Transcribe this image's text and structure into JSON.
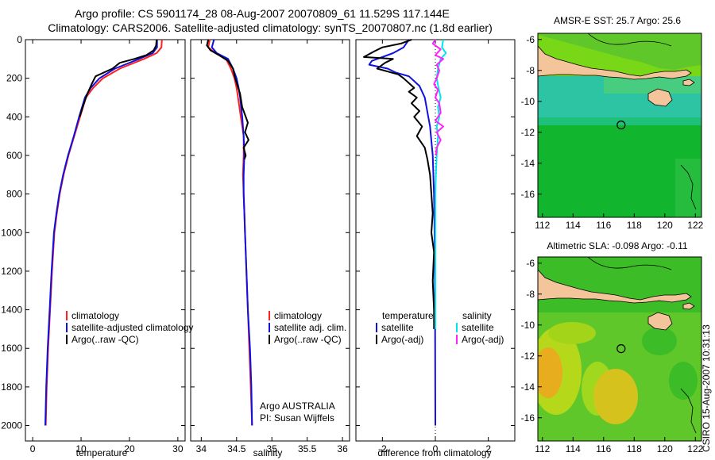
{
  "header": {
    "line1": "Argo profile: CS 5901174_28 08-Aug-2007 20070809_61 11.529S 117.144E",
    "line2": "Climatology: CARS2006. Satellite-adjusted climatology: synTS_20070807.nc (1.8d earlier)"
  },
  "colors": {
    "climatology": "#ff2020",
    "satellite": "#1010e0",
    "argo": "#000000",
    "salinity_satellite": "#00e5ee",
    "salinity_argo": "#ff22ff"
  },
  "chart_data": [
    {
      "type": "line",
      "id": "temperature",
      "xlabel": "temperature",
      "ylabel": "",
      "xlim": [
        -1.5,
        31.5
      ],
      "ylim": [
        0,
        2080
      ],
      "xticks": [
        0,
        10,
        20,
        30
      ],
      "yticks": [
        0,
        200,
        400,
        600,
        800,
        1000,
        1200,
        1400,
        1600,
        1800,
        2000
      ],
      "legend_position": "bottom-center",
      "legend": [
        "climatology",
        "satellite-adjusted climatology",
        "Argo(..raw -QC)"
      ],
      "series": [
        {
          "name": "climatology",
          "color": "#ff2020",
          "points": [
            [
              26.7,
              0
            ],
            [
              26.6,
              40
            ],
            [
              25.6,
              70
            ],
            [
              23.0,
              100
            ],
            [
              18.0,
              150
            ],
            [
              14.5,
              200
            ],
            [
              12.5,
              250
            ],
            [
              11.0,
              300
            ],
            [
              9.8,
              400
            ],
            [
              8.6,
              500
            ],
            [
              7.4,
              600
            ],
            [
              6.4,
              700
            ],
            [
              5.6,
              800
            ],
            [
              5.0,
              900
            ],
            [
              4.5,
              1000
            ],
            [
              4.0,
              1200
            ],
            [
              3.6,
              1400
            ],
            [
              3.2,
              1600
            ],
            [
              2.9,
              1800
            ],
            [
              2.7,
              2000
            ]
          ]
        },
        {
          "name": "satellite-adjusted climatology",
          "color": "#1010e0",
          "points": [
            [
              25.7,
              0
            ],
            [
              25.7,
              40
            ],
            [
              24.8,
              70
            ],
            [
              22.0,
              100
            ],
            [
              17.0,
              150
            ],
            [
              13.8,
              200
            ],
            [
              12.0,
              250
            ],
            [
              10.8,
              300
            ],
            [
              9.6,
              400
            ],
            [
              8.5,
              500
            ],
            [
              7.3,
              600
            ],
            [
              6.3,
              700
            ],
            [
              5.5,
              800
            ],
            [
              4.9,
              900
            ],
            [
              4.4,
              1000
            ],
            [
              3.9,
              1200
            ],
            [
              3.5,
              1400
            ],
            [
              3.1,
              1600
            ],
            [
              2.8,
              1800
            ],
            [
              2.6,
              2000
            ]
          ]
        },
        {
          "name": "Argo(..raw -QC)",
          "color": "#000000",
          "points": [
            [
              25.6,
              0
            ],
            [
              25.5,
              30
            ],
            [
              25.0,
              55
            ],
            [
              23.5,
              80
            ],
            [
              21.0,
              100
            ],
            [
              18.0,
              120
            ],
            [
              16.5,
              150
            ],
            [
              13.0,
              190
            ],
            [
              12.2,
              230
            ],
            [
              11.3,
              280
            ],
            [
              10.6,
              330
            ],
            [
              9.7,
              400
            ]
          ]
        }
      ]
    },
    {
      "type": "line",
      "id": "salinity",
      "xlabel": "salinity",
      "ylabel": "",
      "xlim": [
        33.85,
        36.1
      ],
      "ylim": [
        0,
        2080
      ],
      "xticks": [
        34,
        34.5,
        35,
        35.5,
        36
      ],
      "yticks": [
        0,
        200,
        400,
        600,
        800,
        1000,
        1200,
        1400,
        1600,
        1800,
        2000
      ],
      "legend_position": "bottom-center",
      "legend": [
        "climatology",
        "satellite adj. clim.",
        "Argo(..raw -QC)"
      ],
      "annotations": [
        "Argo AUSTRALIA",
        "PI: Susan Wijffels"
      ],
      "series": [
        {
          "name": "climatology",
          "color": "#ff2020",
          "points": [
            [
              34.12,
              0
            ],
            [
              34.1,
              40
            ],
            [
              34.2,
              70
            ],
            [
              34.35,
              100
            ],
            [
              34.42,
              150
            ],
            [
              34.47,
              200
            ],
            [
              34.5,
              250
            ],
            [
              34.52,
              300
            ],
            [
              34.56,
              400
            ],
            [
              34.6,
              500
            ],
            [
              34.6,
              600
            ],
            [
              34.59,
              700
            ],
            [
              34.6,
              800
            ],
            [
              34.61,
              900
            ],
            [
              34.62,
              1000
            ],
            [
              34.64,
              1200
            ],
            [
              34.66,
              1400
            ],
            [
              34.68,
              1600
            ],
            [
              34.7,
              1800
            ],
            [
              34.72,
              2000
            ]
          ]
        },
        {
          "name": "satellite adj. clim.",
          "color": "#1010e0",
          "points": [
            [
              34.18,
              0
            ],
            [
              34.15,
              40
            ],
            [
              34.22,
              70
            ],
            [
              34.38,
              100
            ],
            [
              34.45,
              150
            ],
            [
              34.5,
              200
            ],
            [
              34.53,
              250
            ],
            [
              34.55,
              300
            ],
            [
              34.58,
              400
            ],
            [
              34.6,
              500
            ],
            [
              34.61,
              600
            ],
            [
              34.6,
              700
            ],
            [
              34.6,
              800
            ],
            [
              34.61,
              900
            ],
            [
              34.62,
              1000
            ],
            [
              34.64,
              1200
            ],
            [
              34.66,
              1400
            ],
            [
              34.69,
              1600
            ],
            [
              34.71,
              1800
            ],
            [
              34.72,
              2000
            ]
          ]
        },
        {
          "name": "Argo(..raw -QC)",
          "color": "#000000",
          "points": [
            [
              34.1,
              0
            ],
            [
              34.08,
              30
            ],
            [
              34.13,
              55
            ],
            [
              34.25,
              80
            ],
            [
              34.38,
              110
            ],
            [
              34.45,
              150
            ],
            [
              34.48,
              200
            ],
            [
              34.55,
              280
            ],
            [
              34.58,
              350
            ],
            [
              34.66,
              430
            ],
            [
              34.62,
              480
            ],
            [
              34.67,
              520
            ],
            [
              34.6,
              560
            ],
            [
              34.63,
              600
            ],
            [
              34.61,
              620
            ]
          ]
        }
      ]
    },
    {
      "type": "line",
      "id": "difference",
      "xlabel": "difference from climatology",
      "ylabel": "",
      "xlim": [
        -3.0,
        3.0
      ],
      "ylim": [
        0,
        2080
      ],
      "xticks": [
        -2,
        0,
        2
      ],
      "yticks": [
        0,
        200,
        400,
        600,
        800,
        1000,
        1200,
        1400,
        1600,
        1800,
        2000
      ],
      "legend_position": "bottom-center",
      "legend_headers": [
        "temperature",
        "salinity"
      ],
      "legend": [
        "satellite",
        "Argo(-adj)",
        "satellite",
        "Argo(-adj)"
      ],
      "series": [
        {
          "name": "temperature satellite",
          "color": "#1010e0",
          "points": [
            [
              -1.0,
              0
            ],
            [
              -1.2,
              40
            ],
            [
              -1.6,
              70
            ],
            [
              -2.4,
              110
            ],
            [
              -2.5,
              130
            ],
            [
              -1.8,
              150
            ],
            [
              -1.5,
              170
            ],
            [
              -1.0,
              190
            ],
            [
              -0.6,
              240
            ],
            [
              -0.4,
              300
            ],
            [
              -0.2,
              450
            ],
            [
              -0.1,
              600
            ],
            [
              -0.05,
              800
            ],
            [
              -0.03,
              1000
            ],
            [
              -0.02,
              1200
            ],
            [
              -0.01,
              1500
            ],
            [
              0.0,
              2000
            ]
          ]
        },
        {
          "name": "temperature Argo(-adj)",
          "color": "#000000",
          "points": [
            [
              -0.9,
              0
            ],
            [
              -1.3,
              20
            ],
            [
              -2.0,
              40
            ],
            [
              -2.3,
              60
            ],
            [
              -2.7,
              90
            ],
            [
              -1.6,
              100
            ],
            [
              -1.9,
              120
            ],
            [
              -2.2,
              150
            ],
            [
              -1.4,
              180
            ],
            [
              -1.2,
              200
            ],
            [
              -0.8,
              250
            ],
            [
              -1.0,
              270
            ],
            [
              -0.7,
              300
            ],
            [
              -0.9,
              330
            ],
            [
              -0.6,
              370
            ],
            [
              -0.8,
              400
            ],
            [
              -0.5,
              450
            ],
            [
              -0.7,
              500
            ],
            [
              -0.4,
              560
            ],
            [
              -0.3,
              620
            ],
            [
              -0.2,
              700
            ],
            [
              -0.15,
              800
            ],
            [
              -0.1,
              900
            ],
            [
              -0.15,
              1000
            ],
            [
              -0.05,
              1100
            ],
            [
              -0.1,
              1250
            ],
            [
              -0.05,
              1400
            ],
            [
              -0.05,
              1500
            ]
          ]
        },
        {
          "name": "salinity satellite",
          "color": "#00e5ee",
          "points": [
            [
              0.3,
              0
            ],
            [
              0.25,
              40
            ],
            [
              0.4,
              70
            ],
            [
              0.2,
              100
            ],
            [
              0.1,
              150
            ],
            [
              0.05,
              200
            ],
            [
              0.12,
              250
            ],
            [
              0.2,
              300
            ],
            [
              0.1,
              350
            ],
            [
              0.15,
              400
            ],
            [
              0.05,
              450
            ],
            [
              0.1,
              500
            ],
            [
              0.05,
              600
            ],
            [
              0.02,
              700
            ],
            [
              0.0,
              800
            ],
            [
              0.0,
              1000
            ],
            [
              0.0,
              1200
            ],
            [
              0.0,
              1500
            ]
          ]
        },
        {
          "name": "salinity Argo(-adj)",
          "color": "#ff22ff",
          "points": [
            [
              0.0,
              0
            ],
            [
              -0.1,
              20
            ],
            [
              0.2,
              50
            ],
            [
              0.0,
              80
            ],
            [
              0.3,
              100
            ],
            [
              0.05,
              130
            ],
            [
              0.15,
              160
            ],
            [
              0.05,
              200
            ],
            [
              -0.05,
              230
            ],
            [
              0.1,
              260
            ],
            [
              0.0,
              300
            ],
            [
              0.15,
              330
            ],
            [
              0.2,
              380
            ],
            [
              0.0,
              420
            ],
            [
              0.3,
              450
            ],
            [
              0.05,
              480
            ],
            [
              0.2,
              520
            ],
            [
              0.05,
              560
            ],
            [
              0.02,
              600
            ]
          ]
        }
      ]
    },
    {
      "type": "heatmap",
      "id": "sst-map",
      "title": "AMSR-E SST: 25.7 Argo: 25.6",
      "xlim": [
        111.7,
        122.4
      ],
      "ylim": [
        -17.5,
        -5.6
      ],
      "xticks": [
        112,
        114,
        116,
        118,
        120,
        122
      ],
      "yticks": [
        -6,
        -8,
        -10,
        -12,
        -14,
        -16
      ],
      "marker": {
        "lon": 117.144,
        "lat": -11.529
      }
    },
    {
      "type": "heatmap",
      "id": "sla-map",
      "title": "Altimetric SLA: -0.098 Argo: -0.11",
      "xlim": [
        111.7,
        122.4
      ],
      "ylim": [
        -17.5,
        -5.6
      ],
      "xticks": [
        112,
        114,
        116,
        118,
        120,
        122
      ],
      "yticks": [
        -6,
        -8,
        -10,
        -12,
        -14,
        -16
      ],
      "marker": {
        "lon": 117.144,
        "lat": -11.529
      }
    }
  ],
  "footer": {
    "credit": "CSIRO 15-Aug-2007 10:31:13"
  }
}
